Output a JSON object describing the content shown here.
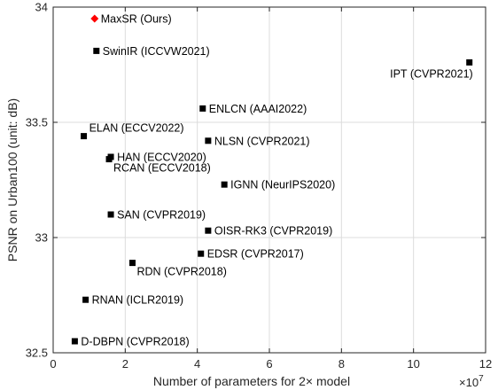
{
  "chart_data": {
    "type": "scatter",
    "title": "",
    "xlabel": "Number of parameters for 2× model",
    "ylabel": "PSNR on Urban100 (unit: dB)",
    "x_exponent_label": "×10",
    "x_exponent_value": "7",
    "xlim": [
      0,
      12
    ],
    "ylim": [
      32.5,
      34
    ],
    "x_scale_multiplier": 10000000,
    "x_ticks": [
      0,
      2,
      4,
      6,
      8,
      10,
      12
    ],
    "x_tick_labels": [
      "0",
      "2",
      "4",
      "6",
      "8",
      "10",
      "12"
    ],
    "y_ticks": [
      32.5,
      33,
      33.5,
      34
    ],
    "y_tick_labels": [
      "32.5",
      "33",
      "33.5",
      "34"
    ],
    "grid": true,
    "points": [
      {
        "label": "MaxSR (Ours)",
        "x": 1.15,
        "y": 33.95,
        "marker": "diamond",
        "color": "#ff0000",
        "label_pos": "right"
      },
      {
        "label": "SwinIR (ICCVW2021)",
        "x": 1.2,
        "y": 33.81,
        "marker": "square",
        "color": "#000000",
        "label_pos": "right"
      },
      {
        "label": "IPT (CVPR2021)",
        "x": 11.55,
        "y": 33.76,
        "marker": "square",
        "color": "#000000",
        "label_pos": "below-left"
      },
      {
        "label": "ENLCN (AAAI2022)",
        "x": 4.15,
        "y": 33.56,
        "marker": "square",
        "color": "#000000",
        "label_pos": "right"
      },
      {
        "label": "ELAN (ECCV2022)",
        "x": 0.85,
        "y": 33.44,
        "marker": "square",
        "color": "#000000",
        "label_pos": "above-right"
      },
      {
        "label": "NLSN (CVPR2021)",
        "x": 4.3,
        "y": 33.42,
        "marker": "square",
        "color": "#000000",
        "label_pos": "right"
      },
      {
        "label": "HAN (ECCV2020)",
        "x": 1.6,
        "y": 33.35,
        "marker": "square",
        "color": "#000000",
        "label_pos": "right"
      },
      {
        "label": "RCAN (ECCV2018)",
        "x": 1.55,
        "y": 33.34,
        "marker": "square",
        "color": "#000000",
        "label_pos": "below-right"
      },
      {
        "label": "IGNN (NeurIPS2020)",
        "x": 4.75,
        "y": 33.23,
        "marker": "square",
        "color": "#000000",
        "label_pos": "right"
      },
      {
        "label": "SAN (CVPR2019)",
        "x": 1.6,
        "y": 33.1,
        "marker": "square",
        "color": "#000000",
        "label_pos": "right"
      },
      {
        "label": "OISR-RK3 (CVPR2019)",
        "x": 4.3,
        "y": 33.03,
        "marker": "square",
        "color": "#000000",
        "label_pos": "right"
      },
      {
        "label": "EDSR (CVPR2017)",
        "x": 4.1,
        "y": 32.93,
        "marker": "square",
        "color": "#000000",
        "label_pos": "right"
      },
      {
        "label": "RDN (CVPR2018)",
        "x": 2.2,
        "y": 32.89,
        "marker": "square",
        "color": "#000000",
        "label_pos": "below-right"
      },
      {
        "label": "RNAN (ICLR2019)",
        "x": 0.9,
        "y": 32.73,
        "marker": "square",
        "color": "#000000",
        "label_pos": "right"
      },
      {
        "label": "D-DBPN (CVPR2018)",
        "x": 0.6,
        "y": 32.55,
        "marker": "square",
        "color": "#000000",
        "label_pos": "right"
      }
    ]
  }
}
